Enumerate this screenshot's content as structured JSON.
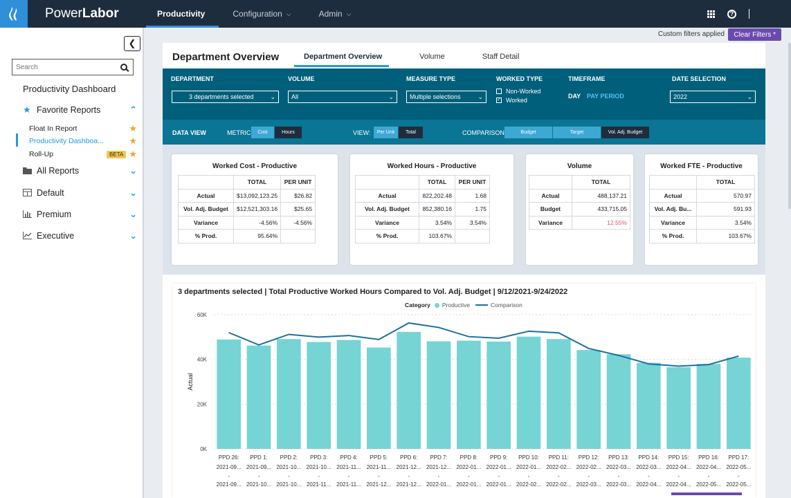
{
  "app": {
    "brand_prefix": "Power",
    "brand_bold": "Labor"
  },
  "nav": [
    {
      "label": "Productivity",
      "active": true,
      "has_menu": false
    },
    {
      "label": "Configuration",
      "active": false,
      "has_menu": true
    },
    {
      "label": "Admin",
      "active": false,
      "has_menu": true
    }
  ],
  "filter_strip": {
    "note": "Custom filters applied",
    "clear_label": "Clear Filters *"
  },
  "sidebar": {
    "search_placeholder": "Search",
    "title": "Productivity Dashboard",
    "favorites_label": "Favorite Reports",
    "favorites": [
      {
        "label": "Float In Report",
        "badge": ""
      },
      {
        "label": "Productivity Dashboa...",
        "badge": "",
        "active": true
      },
      {
        "label": "Roll-Up",
        "badge": "BETA"
      }
    ],
    "sections": [
      {
        "label": "All Reports",
        "icon": "folder-icon"
      },
      {
        "label": "Default",
        "icon": "table-icon"
      },
      {
        "label": "Premium",
        "icon": "bar-chart-icon"
      },
      {
        "label": "Executive",
        "icon": "line-chart-icon"
      }
    ]
  },
  "page": {
    "title": "Department Overview",
    "tabs": [
      "Department Overview",
      "Volume",
      "Staff Detail"
    ]
  },
  "filters": {
    "department": {
      "label": "DEPARTMENT",
      "value": "3 departments selected"
    },
    "volume": {
      "label": "VOLUME",
      "value": "All"
    },
    "measure_type": {
      "label": "MEASURE TYPE",
      "value": "Multiple selections"
    },
    "worked_type": {
      "label": "WORKED TYPE",
      "options": [
        {
          "label": "Non-Worked",
          "checked": false
        },
        {
          "label": "Worked",
          "checked": true
        }
      ]
    },
    "timeframe": {
      "label": "TIMEFRAME",
      "day": "DAY",
      "pay_period": "PAY PERIOD"
    },
    "date_selection": {
      "label": "DATE SELECTION",
      "value": "2022"
    }
  },
  "data_view": {
    "label": "DATA VIEW",
    "metric_label": "METRIC:",
    "metric": [
      {
        "label": "Cost",
        "on": true
      },
      {
        "label": "Hours",
        "on": false
      }
    ],
    "view_label": "VIEW:",
    "view": [
      {
        "label": "Per Unit",
        "on": true
      },
      {
        "label": "Total",
        "on": false
      }
    ],
    "comparison_label": "COMPARISON:",
    "comparison": [
      {
        "label": "Budget",
        "on": true
      },
      {
        "label": "Target",
        "on": true
      },
      {
        "label": "Vol. Adj. Budget",
        "on": false
      }
    ]
  },
  "cards": [
    {
      "title": "Worked Cost - Productive",
      "columns": [
        "TOTAL",
        "PER UNIT"
      ],
      "rows": [
        {
          "label": "Actual",
          "values": [
            "$13,092,123.25",
            "$26.82"
          ]
        },
        {
          "label": "Vol. Adj. Budget",
          "values": [
            "$12,521,303.16",
            "$25.65"
          ]
        },
        {
          "label": "Variance",
          "values": [
            "-4.56%",
            "-4.56%"
          ]
        },
        {
          "label": "% Prod.",
          "values": [
            "95.64%",
            ""
          ]
        }
      ]
    },
    {
      "title": "Worked Hours - Productive",
      "columns": [
        "TOTAL",
        "PER UNIT"
      ],
      "rows": [
        {
          "label": "Actual",
          "values": [
            "822,202.48",
            "1.68"
          ]
        },
        {
          "label": "Vol. Adj. Budget",
          "values": [
            "852,380.16",
            "1.75"
          ]
        },
        {
          "label": "Variance",
          "values": [
            "3.54%",
            "3.54%"
          ]
        },
        {
          "label": "% Prod.",
          "values": [
            "103.67%",
            ""
          ]
        }
      ]
    },
    {
      "title": "Volume",
      "columns": [
        "TOTAL"
      ],
      "rows": [
        {
          "label": "Actual",
          "values": [
            "488,137.21"
          ]
        },
        {
          "label": "Budget",
          "values": [
            "433,715.05"
          ]
        },
        {
          "label": "Variance",
          "values": [
            "12.55%"
          ],
          "red": true
        }
      ]
    },
    {
      "title": "Worked FTE - Productive",
      "columns": [
        "TOTAL"
      ],
      "rows": [
        {
          "label": "Actual",
          "values": [
            "570.97"
          ]
        },
        {
          "label": "Vol. Adj. Bu...",
          "values": [
            "591.93"
          ]
        },
        {
          "label": "Variance",
          "values": [
            "3.54%"
          ]
        },
        {
          "label": "% Prod.",
          "values": [
            "103.67%"
          ]
        }
      ]
    }
  ],
  "chart_data": {
    "type": "bar",
    "title": "3 departments selected | Total Productive Worked Hours Compared to Vol. Adj. Budget | 9/12/2021-9/24/2022",
    "legend_title": "Category",
    "legend_position": "top-center",
    "ylabel": "Actual",
    "xlabel": "",
    "ylim": [
      0,
      60000
    ],
    "yticks": [
      {
        "value": 0,
        "label": "0K"
      },
      {
        "value": 20000,
        "label": "20K"
      },
      {
        "value": 40000,
        "label": "40K"
      },
      {
        "value": 60000,
        "label": "60K"
      }
    ],
    "grid": true,
    "categories": [
      {
        "l1": "PPD 26:",
        "l2": "2021-09...",
        "l3": "2021-09..."
      },
      {
        "l1": "PPD 1:",
        "l2": "2021-09...",
        "l3": "2021-10..."
      },
      {
        "l1": "PPD 2:",
        "l2": "2021-10...",
        "l3": "2021-10..."
      },
      {
        "l1": "PPD 3:",
        "l2": "2021-10...",
        "l3": "2021-11..."
      },
      {
        "l1": "PPD 4:",
        "l2": "2021-11...",
        "l3": "2021-11..."
      },
      {
        "l1": "PPD 5:",
        "l2": "2021-11...",
        "l3": "2021-12..."
      },
      {
        "l1": "PPD 6:",
        "l2": "2021-12...",
        "l3": "2021-12..."
      },
      {
        "l1": "PPD 7:",
        "l2": "2021-12...",
        "l3": "2022-01..."
      },
      {
        "l1": "PPD 8:",
        "l2": "2022-01...",
        "l3": "2022-01..."
      },
      {
        "l1": "PPD 9:",
        "l2": "2022-01...",
        "l3": "2022-01..."
      },
      {
        "l1": "PPD 10:",
        "l2": "2022-01...",
        "l3": "2022-02..."
      },
      {
        "l1": "PPD 11:",
        "l2": "2022-02...",
        "l3": "2022-02..."
      },
      {
        "l1": "PPD 12:",
        "l2": "2022-02...",
        "l3": "2022-03..."
      },
      {
        "l1": "PPD 13:",
        "l2": "2022-03...",
        "l3": "2022-03..."
      },
      {
        "l1": "PPD 14:",
        "l2": "2022-03...",
        "l3": "2022-04..."
      },
      {
        "l1": "PPD 15:",
        "l2": "2022-04...",
        "l3": "2022-04..."
      },
      {
        "l1": "PPD 16:",
        "l2": "2022-04...",
        "l3": "2022-05..."
      },
      {
        "l1": "PPD 17:",
        "l2": "2022-05...",
        "l3": "2022-05..."
      }
    ],
    "series": [
      {
        "name": "Productive",
        "type": "bar",
        "color": "#76d4d4",
        "values": [
          48900,
          46200,
          49100,
          47800,
          48700,
          45300,
          52300,
          48100,
          48400,
          48000,
          50200,
          49100,
          44200,
          42300,
          38500,
          36500,
          38000,
          40800
        ]
      },
      {
        "name": "Comparison",
        "type": "line",
        "color": "#1c6fa0",
        "values": [
          52000,
          46500,
          51200,
          50000,
          50700,
          48900,
          56300,
          54300,
          50200,
          49500,
          52600,
          51900,
          44900,
          41800,
          38000,
          37000,
          37700,
          41500
        ]
      }
    ]
  }
}
